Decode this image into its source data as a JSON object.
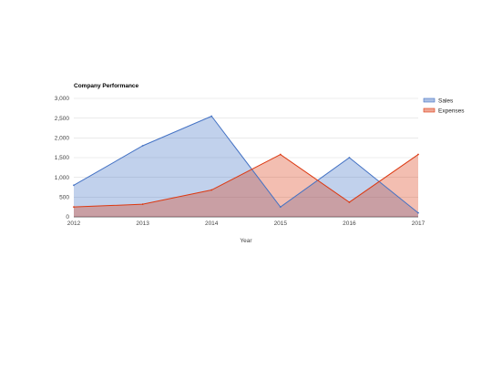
{
  "chart_data": {
    "type": "area",
    "title": "Company Performance",
    "xlabel": "Year",
    "ylabel": "",
    "x": [
      "2012",
      "2013",
      "2014",
      "2015",
      "2016",
      "2017"
    ],
    "ylim": [
      0,
      3000
    ],
    "yticks": [
      0,
      500,
      1000,
      1500,
      2000,
      2500,
      3000
    ],
    "ytick_labels": [
      "0",
      "500",
      "1,000",
      "1,500",
      "2,000",
      "2,500",
      "3,000"
    ],
    "grid": true,
    "legend_position": "right",
    "series": [
      {
        "name": "Sales",
        "values": [
          800,
          1800,
          2550,
          250,
          1500,
          100
        ],
        "color": "#4472c4"
      },
      {
        "name": "Expenses",
        "values": [
          250,
          320,
          680,
          1580,
          370,
          1580
        ],
        "color": "#dc3912"
      }
    ]
  }
}
